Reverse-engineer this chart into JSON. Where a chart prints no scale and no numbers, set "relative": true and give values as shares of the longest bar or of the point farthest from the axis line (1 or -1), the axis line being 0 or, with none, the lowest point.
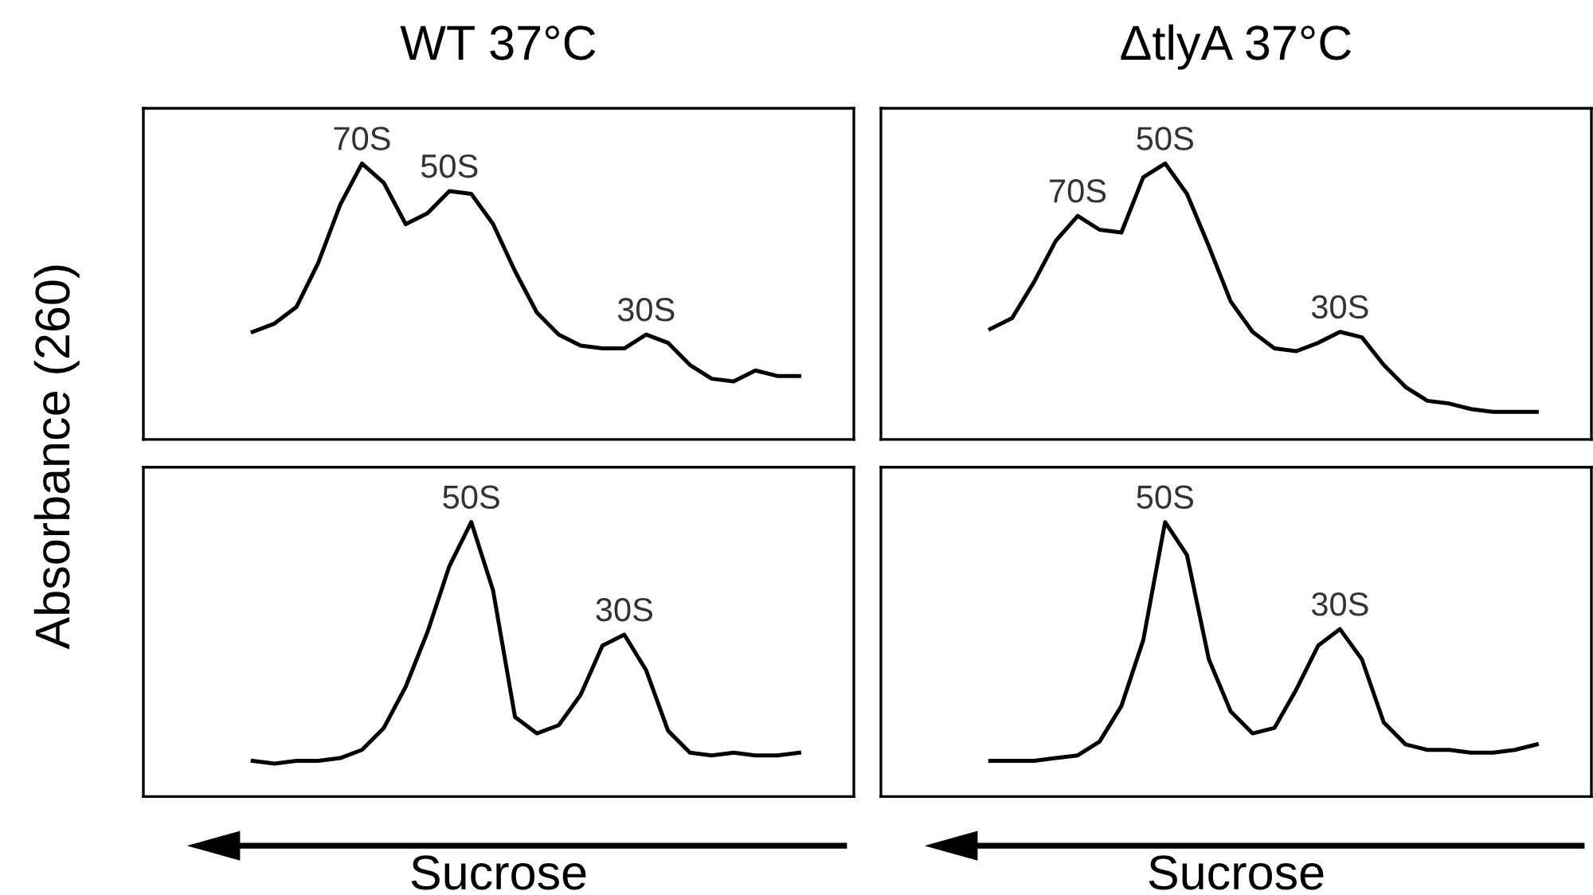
{
  "chart_data": [
    {
      "type": "line",
      "title": "WT 37°C",
      "ylabel": "Absorbance (260)",
      "relative": true,
      "tick_labels": false,
      "marker": "none",
      "line_style": "solid",
      "legend": false,
      "categories": [
        null,
        null,
        null,
        null,
        null,
        null,
        null,
        null,
        null,
        null,
        null,
        null,
        null,
        null,
        null,
        null,
        null,
        null,
        null,
        null,
        null,
        null,
        null,
        null,
        null,
        null
      ],
      "series": [
        {
          "color": "#000000",
          "values": [
            0.39,
            0.42,
            0.48,
            0.64,
            0.85,
            1.0,
            0.93,
            0.78,
            0.82,
            0.9,
            0.89,
            0.78,
            0.61,
            0.46,
            0.38,
            0.34,
            0.33,
            0.33,
            0.38,
            0.35,
            0.27,
            0.22,
            0.21,
            0.25,
            0.23,
            0.23
          ]
        }
      ],
      "annotations": [
        "70S",
        "50S",
        "30S"
      ]
    },
    {
      "type": "line",
      "title": "ΔtlyA 37°C",
      "relative": true,
      "tick_labels": false,
      "marker": "none",
      "line_style": "solid",
      "legend": false,
      "categories": [
        null,
        null,
        null,
        null,
        null,
        null,
        null,
        null,
        null,
        null,
        null,
        null,
        null,
        null,
        null,
        null,
        null,
        null,
        null,
        null,
        null,
        null,
        null,
        null,
        null,
        null
      ],
      "series": [
        {
          "color": "#000000",
          "values": [
            0.4,
            0.44,
            0.57,
            0.72,
            0.81,
            0.76,
            0.75,
            0.95,
            1.0,
            0.89,
            0.7,
            0.5,
            0.39,
            0.33,
            0.32,
            0.35,
            0.39,
            0.37,
            0.27,
            0.19,
            0.14,
            0.13,
            0.11,
            0.1,
            0.1,
            0.1
          ]
        }
      ],
      "annotations": [
        "70S",
        "50S",
        "30S"
      ]
    },
    {
      "type": "line",
      "xlabel": "Sucrose",
      "relative": true,
      "tick_labels": false,
      "marker": "none",
      "line_style": "solid",
      "legend": false,
      "categories": [
        null,
        null,
        null,
        null,
        null,
        null,
        null,
        null,
        null,
        null,
        null,
        null,
        null,
        null,
        null,
        null,
        null,
        null,
        null,
        null,
        null,
        null,
        null,
        null,
        null,
        null
      ],
      "series": [
        {
          "color": "#000000",
          "values": [
            0.13,
            0.12,
            0.13,
            0.13,
            0.14,
            0.17,
            0.25,
            0.4,
            0.6,
            0.84,
            1.0,
            0.75,
            0.29,
            0.23,
            0.26,
            0.37,
            0.55,
            0.59,
            0.46,
            0.24,
            0.16,
            0.15,
            0.16,
            0.15,
            0.15,
            0.16
          ]
        }
      ],
      "annotations": [
        "50S",
        "30S"
      ]
    },
    {
      "type": "line",
      "xlabel": "Sucrose",
      "relative": true,
      "tick_labels": false,
      "marker": "none",
      "line_style": "solid",
      "legend": false,
      "categories": [
        null,
        null,
        null,
        null,
        null,
        null,
        null,
        null,
        null,
        null,
        null,
        null,
        null,
        null,
        null,
        null,
        null,
        null,
        null,
        null,
        null,
        null,
        null,
        null,
        null,
        null
      ],
      "series": [
        {
          "color": "#000000",
          "values": [
            0.13,
            0.13,
            0.13,
            0.14,
            0.15,
            0.2,
            0.33,
            0.57,
            1.0,
            0.88,
            0.5,
            0.31,
            0.23,
            0.25,
            0.39,
            0.55,
            0.61,
            0.5,
            0.27,
            0.19,
            0.17,
            0.17,
            0.16,
            0.16,
            0.17,
            0.19
          ]
        }
      ],
      "annotations": [
        "50S",
        "30S"
      ]
    }
  ]
}
